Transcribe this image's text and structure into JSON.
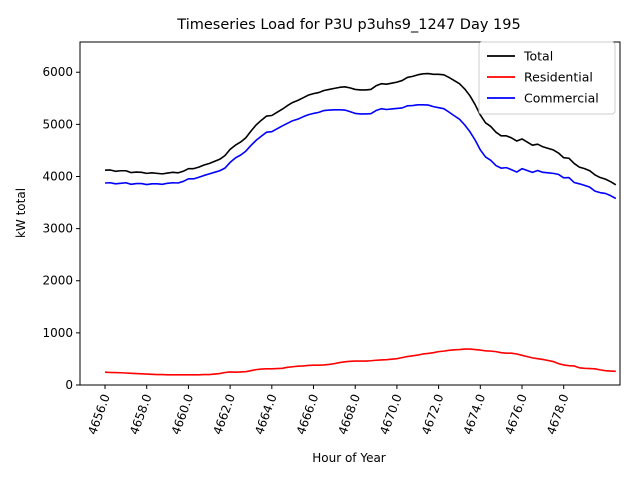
{
  "chart_data": {
    "type": "line",
    "title": "Timeseries Load for P3U p3uhs9_1247  Day 195",
    "xlabel": "Hour of Year",
    "ylabel": "kW total",
    "xlim": [
      4654.8,
      4680.7
    ],
    "ylim": [
      0,
      6580
    ],
    "x_ticks": [
      4656,
      4658,
      4660,
      4662,
      4664,
      4666,
      4668,
      4670,
      4672,
      4674,
      4676,
      4678
    ],
    "x_tick_labels": [
      "4656.0",
      "4658.0",
      "4660.0",
      "4662.0",
      "4664.0",
      "4666.0",
      "4668.0",
      "4670.0",
      "4672.0",
      "4674.0",
      "4676.0",
      "4678.0"
    ],
    "y_ticks": [
      0,
      1000,
      2000,
      3000,
      4000,
      5000,
      6000
    ],
    "y_tick_labels": [
      "0",
      "1000",
      "2000",
      "3000",
      "4000",
      "5000",
      "6000"
    ],
    "legend_position": "top-right",
    "x_start": 4656.0,
    "x_step": 0.25,
    "series": [
      {
        "name": "Total",
        "color": "#000000",
        "values": [
          4120,
          4125,
          4100,
          4110,
          4110,
          4075,
          4085,
          4080,
          4060,
          4070,
          4060,
          4050,
          4065,
          4080,
          4070,
          4100,
          4150,
          4150,
          4180,
          4220,
          4250,
          4290,
          4330,
          4400,
          4520,
          4600,
          4660,
          4740,
          4870,
          4990,
          5080,
          5160,
          5170,
          5230,
          5290,
          5360,
          5420,
          5460,
          5510,
          5560,
          5590,
          5610,
          5650,
          5670,
          5690,
          5710,
          5720,
          5700,
          5670,
          5660,
          5660,
          5670,
          5740,
          5780,
          5770,
          5790,
          5810,
          5840,
          5900,
          5920,
          5950,
          5970,
          5975,
          5960,
          5960,
          5950,
          5900,
          5840,
          5780,
          5680,
          5550,
          5380,
          5180,
          5030,
          4960,
          4850,
          4780,
          4780,
          4740,
          4680,
          4720,
          4660,
          4600,
          4620,
          4570,
          4540,
          4510,
          4450,
          4360,
          4350,
          4250,
          4180,
          4150,
          4110,
          4030,
          3980,
          3950,
          3900,
          3840
        ]
      },
      {
        "name": "Residential",
        "color": "#ff0000",
        "values": [
          245,
          240,
          238,
          235,
          230,
          225,
          220,
          215,
          210,
          205,
          200,
          200,
          195,
          195,
          195,
          195,
          195,
          195,
          195,
          200,
          200,
          210,
          220,
          240,
          250,
          245,
          250,
          255,
          275,
          295,
          305,
          310,
          310,
          315,
          320,
          340,
          350,
          360,
          365,
          375,
          380,
          380,
          385,
          395,
          410,
          430,
          445,
          455,
          460,
          460,
          460,
          465,
          475,
          480,
          485,
          495,
          505,
          525,
          545,
          560,
          575,
          595,
          605,
          620,
          640,
          650,
          665,
          675,
          680,
          690,
          690,
          680,
          670,
          655,
          650,
          640,
          620,
          610,
          610,
          595,
          570,
          545,
          520,
          505,
          490,
          470,
          450,
          410,
          385,
          370,
          365,
          330,
          320,
          315,
          310,
          290,
          275,
          268,
          262
        ]
      },
      {
        "name": "Commercial",
        "color": "#0000ff",
        "values": [
          3875,
          3880,
          3860,
          3870,
          3880,
          3850,
          3865,
          3865,
          3845,
          3860,
          3860,
          3850,
          3870,
          3880,
          3875,
          3905,
          3955,
          3955,
          3985,
          4020,
          4050,
          4080,
          4110,
          4160,
          4270,
          4355,
          4410,
          4485,
          4595,
          4695,
          4775,
          4850,
          4860,
          4915,
          4970,
          5020,
          5070,
          5100,
          5145,
          5185,
          5210,
          5230,
          5265,
          5275,
          5280,
          5280,
          5275,
          5245,
          5210,
          5200,
          5200,
          5205,
          5265,
          5300,
          5285,
          5295,
          5305,
          5315,
          5355,
          5360,
          5375,
          5375,
          5370,
          5340,
          5320,
          5300,
          5235,
          5165,
          5100,
          4990,
          4860,
          4700,
          4510,
          4375,
          4310,
          4210,
          4160,
          4170,
          4130,
          4085,
          4150,
          4115,
          4080,
          4115,
          4080,
          4070,
          4060,
          4040,
          3975,
          3980,
          3885,
          3860,
          3830,
          3795,
          3720,
          3690,
          3675,
          3632,
          3578
        ]
      }
    ]
  }
}
